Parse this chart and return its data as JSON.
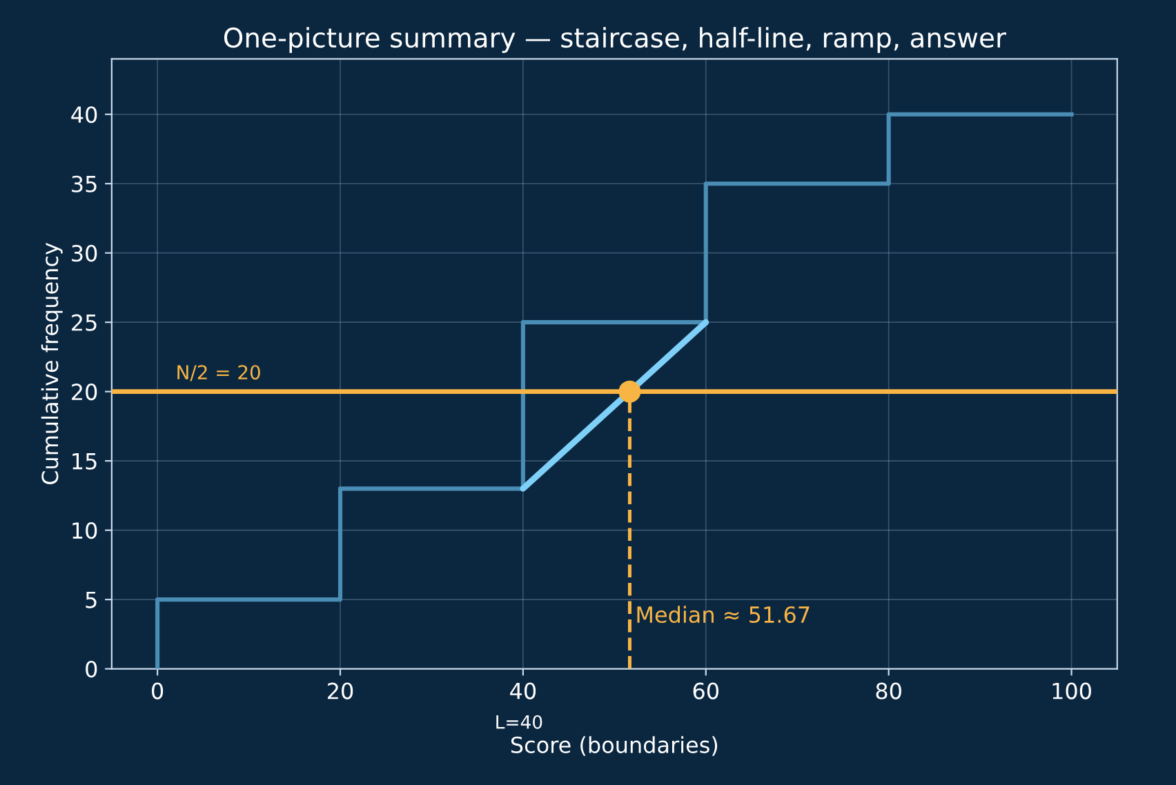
{
  "chart_data": {
    "type": "step",
    "title": "One-picture summary — staircase, half-line, ramp, answer",
    "xlabel": "Score (boundaries)",
    "ylabel": "Cumulative frequency",
    "series": [
      {
        "color": "#4a8db5",
        "x": [
          0,
          0,
          20,
          40,
          60,
          80,
          100
        ],
        "values": [
          0,
          5,
          13,
          25,
          35,
          40,
          40
        ]
      },
      {
        "type": "line",
        "color": "#7fd0f8",
        "x": [
          40,
          60
        ],
        "values": [
          13,
          25
        ]
      },
      {
        "type": "scatter",
        "color": "#f9b544",
        "x": [
          51.67
        ],
        "values": [
          20
        ]
      }
    ],
    "ref_lines": [
      {
        "axis": "y",
        "value": 20,
        "label": "N/2 = 20",
        "color": "#f9b544",
        "line_style": "solid"
      },
      {
        "axis": "x",
        "value": 51.67,
        "label": "Median ≈ 51.67",
        "color": "#f9b544",
        "line_style": "dashed"
      }
    ],
    "annotations": [
      "L=40"
    ],
    "xlim": [
      -5,
      105
    ],
    "ylim": [
      0,
      44
    ],
    "xticks": [
      0,
      20,
      40,
      60,
      80,
      100
    ],
    "yticks": [
      0,
      5,
      10,
      15,
      20,
      25,
      30,
      35,
      40
    ],
    "grid": true
  }
}
